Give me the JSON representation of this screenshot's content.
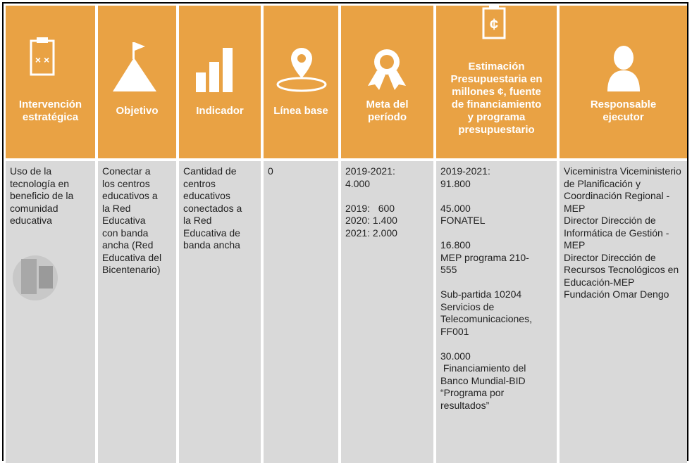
{
  "table": {
    "header": [
      [
        "Intervención",
        "estratégica"
      ],
      [
        "Objetivo"
      ],
      [
        "Indicador"
      ],
      [
        "Línea base"
      ],
      [
        "Meta del",
        "período"
      ],
      [
        "Estimación",
        "Presupuestaria en",
        "millones ¢, fuente",
        "de financiamiento",
        "y programa",
        "presupuestario"
      ],
      [
        "Responsable",
        "ejecutor"
      ]
    ],
    "icon_text": "¢",
    "rows": [
      [
        [
          [
            "Uso de la",
            "tecnología en",
            "beneficio de la",
            "comunidad",
            "educativa"
          ]
        ],
        [
          [
            "Conectar a",
            "los centros",
            "educativos a",
            "la Red",
            "Educativa",
            "con banda",
            "ancha (Red",
            "Educativa del",
            "Bicentenario)"
          ]
        ],
        [
          [
            "Cantidad de",
            "centros",
            "educativos",
            "conectados a",
            "la Red",
            "Educativa de",
            "banda ancha"
          ]
        ],
        [
          [
            "0"
          ]
        ],
        [
          [
            "2019-2021:",
            "4.000"
          ],
          [
            "2019:   600",
            "2020: 1.400",
            "2021: 2.000"
          ]
        ],
        [
          [
            "2019-2021:",
            "91.800"
          ],
          [
            "45.000",
            "FONATEL"
          ],
          [
            "16.800",
            "MEP programa 210-",
            "555"
          ],
          [
            "Sub-partida 10204",
            "Servicios de",
            "Telecomunicaciones,",
            "FF001"
          ],
          [
            "30.000",
            " Financiamiento del",
            "Banco Mundial-BID",
            "“Programa por",
            "resultados”"
          ]
        ],
        [
          [
            "Viceministra Viceministerio",
            "de Planificación y",
            "Coordinación Regional -",
            "MEP",
            "Director Dirección de",
            "Informática de Gestión -",
            "MEP",
            "Director Dirección de",
            "Recursos Tecnológicos en",
            "Educación-MEP",
            "Fundación Omar Dengo"
          ]
        ]
      ]
    ]
  }
}
